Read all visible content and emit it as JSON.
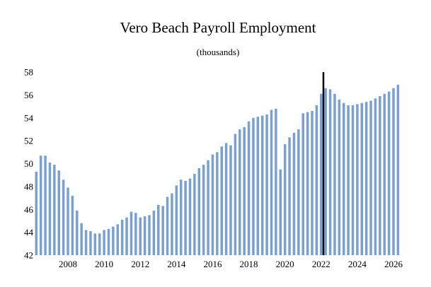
{
  "chart_data": {
    "type": "bar",
    "title": "Vero Beach Payroll Employment",
    "subtitle": "(thousands)",
    "xlabel": "",
    "ylabel": "",
    "ylim": [
      42,
      58
    ],
    "yticks": [
      "42",
      "44",
      "46",
      "48",
      "50",
      "52",
      "54",
      "56",
      "58"
    ],
    "xticks": [
      "2008",
      "2010",
      "2012",
      "2014",
      "2016",
      "2018",
      "2020",
      "2022",
      "2024",
      "2026"
    ],
    "grid": false,
    "legend": "none",
    "bar_color": "#7a9fd4",
    "marker_color": "#000000",
    "start": "2006 Q2",
    "frequency": "quarterly",
    "forecast_start": "2022 Q2",
    "values": [
      49.3,
      50.7,
      50.7,
      50.1,
      49.9,
      49.4,
      48.6,
      47.9,
      47.2,
      45.9,
      44.8,
      44.2,
      44.1,
      43.9,
      43.9,
      44.2,
      44.3,
      44.5,
      44.7,
      45.1,
      45.3,
      45.8,
      45.7,
      45.3,
      45.4,
      45.5,
      45.9,
      46.4,
      46.3,
      47.1,
      47.4,
      48.1,
      48.6,
      48.5,
      48.7,
      49.1,
      49.6,
      49.9,
      50.3,
      50.8,
      51.0,
      51.5,
      51.8,
      51.6,
      52.6,
      53.0,
      53.2,
      53.7,
      54.0,
      54.1,
      54.2,
      54.3,
      54.7,
      54.8,
      49.5,
      51.7,
      52.3,
      52.7,
      53.0,
      54.4,
      54.5,
      54.6,
      55.1,
      56.1,
      56.6,
      56.5,
      56.1,
      55.6,
      55.3,
      55.1,
      55.1,
      55.2,
      55.3,
      55.4,
      55.5,
      55.7,
      55.9,
      56.1,
      56.3,
      56.6,
      56.9
    ]
  }
}
